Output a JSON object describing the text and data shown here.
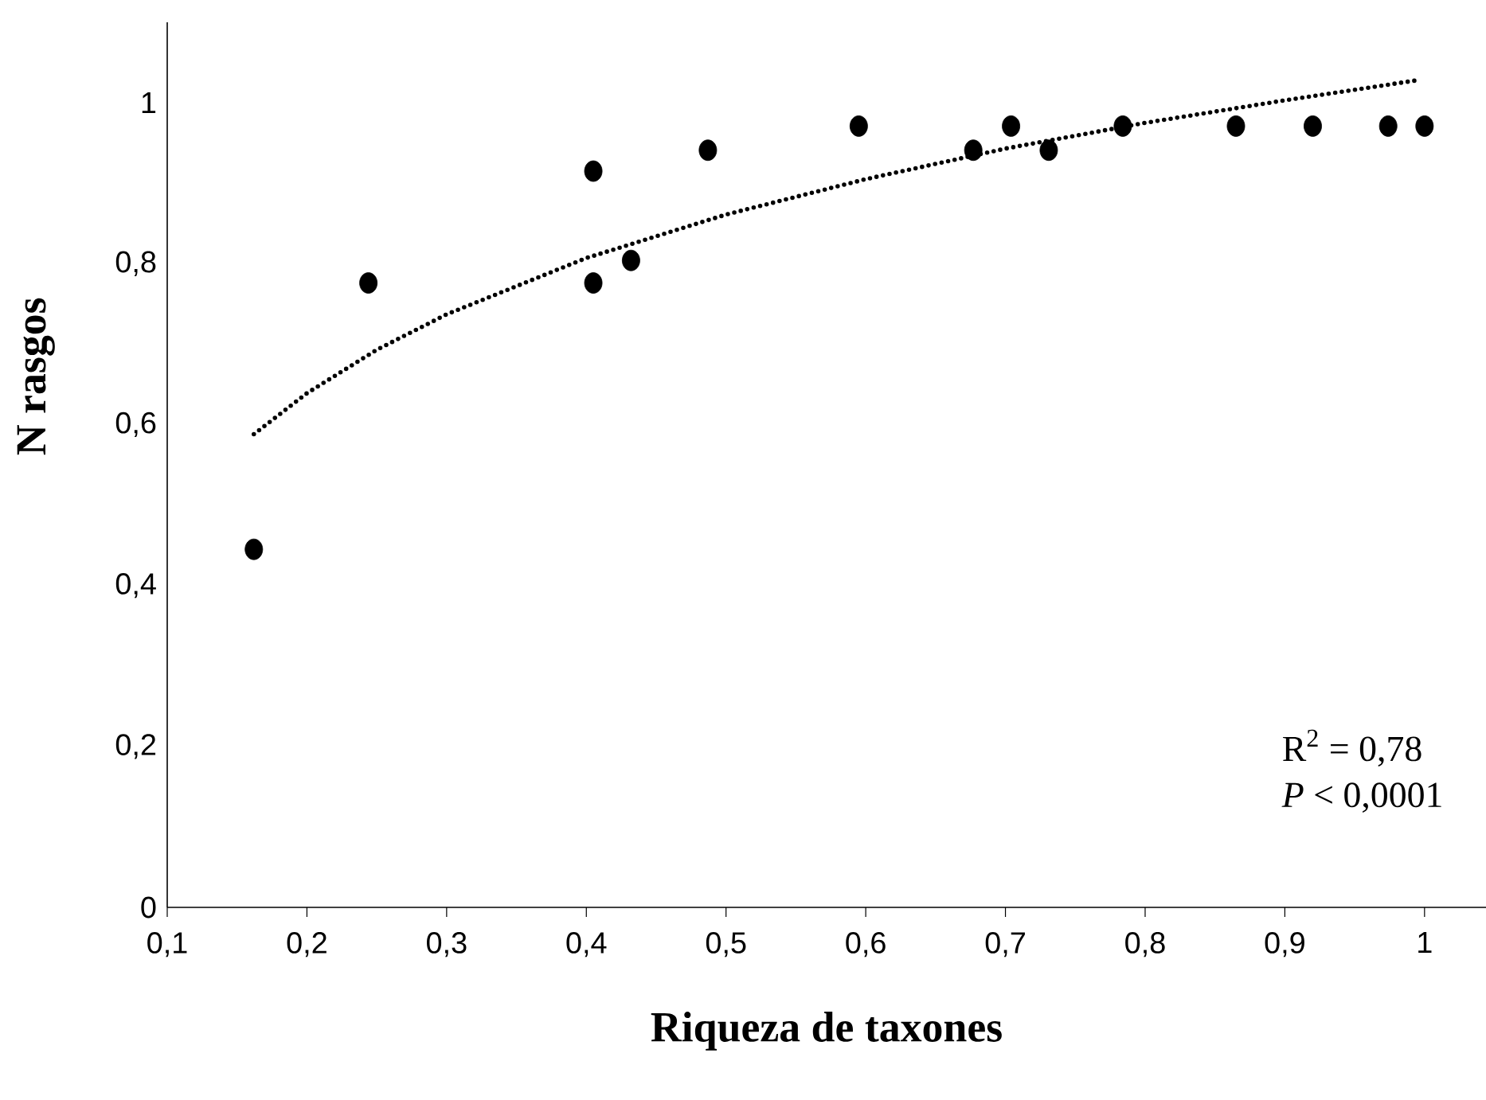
{
  "chart_data": {
    "type": "scatter",
    "xlabel": "Riqueza de taxones",
    "ylabel": "N rasgos",
    "xlim": [
      0.1,
      1.044
    ],
    "ylim": [
      0,
      1.1
    ],
    "xticks": [
      {
        "value": 0.1,
        "label": "0,1"
      },
      {
        "value": 0.2,
        "label": "0,2"
      },
      {
        "value": 0.3,
        "label": "0,3"
      },
      {
        "value": 0.4,
        "label": "0,4"
      },
      {
        "value": 0.5,
        "label": "0,5"
      },
      {
        "value": 0.6,
        "label": "0,6"
      },
      {
        "value": 0.7,
        "label": "0,7"
      },
      {
        "value": 0.8,
        "label": "0,8"
      },
      {
        "value": 0.9,
        "label": "0,9"
      },
      {
        "value": 1,
        "label": "1"
      }
    ],
    "yticks": [
      0,
      {
        "value": 0.2,
        "label": "0,2"
      },
      {
        "value": 0.4,
        "label": "0,4"
      },
      {
        "value": 0.6,
        "label": "0,6"
      },
      {
        "value": 0.8,
        "label": "0,8"
      },
      1
    ],
    "annotations": [
      "R$^{2}$ = 0,78",
      "*P* < 0,0001"
    ],
    "series": [
      {
        "color": "#000000",
        "marker": "circle",
        "x": [
          0.162,
          0.244,
          0.405,
          0.405,
          0.432,
          0.487,
          0.595,
          0.677,
          0.704,
          0.731,
          0.784,
          0.865,
          0.92,
          0.974,
          1.0
        ],
        "values": [
          0.445,
          0.776,
          0.915,
          0.776,
          0.804,
          0.941,
          0.971,
          0.941,
          0.971,
          0.941,
          0.971,
          0.971,
          0.971,
          0.971,
          0.971
        ]
      },
      {
        "type": "line",
        "color": "#000000",
        "marker": "none",
        "line_style": "dotted",
        "x": [
          0.162,
          0.2,
          0.25,
          0.3,
          0.4,
          0.5,
          0.6,
          0.7,
          0.8,
          0.9,
          0.995
        ],
        "values": [
          0.588,
          0.639,
          0.693,
          0.737,
          0.807,
          0.861,
          0.905,
          0.943,
          0.975,
          1.003,
          1.028
        ]
      }
    ]
  }
}
